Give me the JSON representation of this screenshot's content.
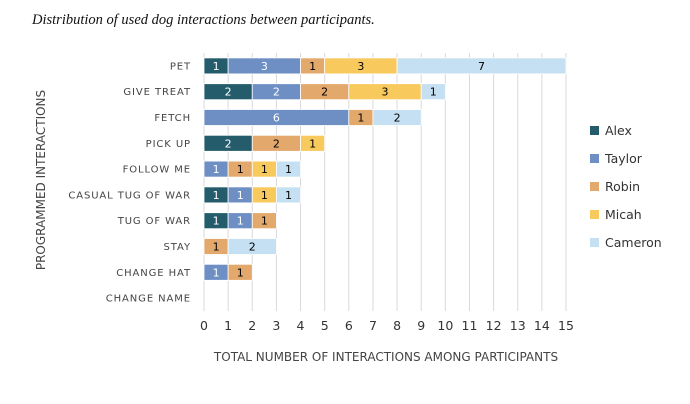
{
  "chart_data": {
    "type": "bar",
    "orientation": "horizontal",
    "stacked": true,
    "title": "Distribution of used dog interactions between participants.",
    "xlabel": "TOTAL NUMBER OF INTERACTIONS AMONG PARTICIPANTS",
    "ylabel": "PROGRAMMED INTERACTIONS",
    "xlim": [
      0,
      15
    ],
    "xticks": [
      0,
      1,
      2,
      3,
      4,
      5,
      6,
      7,
      8,
      9,
      10,
      11,
      12,
      13,
      14,
      15
    ],
    "grid": true,
    "legend_position": "right",
    "categories": [
      "PET",
      "GIVE TREAT",
      "FETCH",
      "PICK UP",
      "FOLLOW ME",
      "CASUAL TUG OF WAR",
      "TUG OF WAR",
      "STAY",
      "CHANGE HAT",
      "CHANGE NAME"
    ],
    "series": [
      {
        "name": "Alex",
        "color": "#245c6c",
        "label_color": "#ffffff",
        "values": [
          1,
          2,
          0,
          2,
          0,
          1,
          1,
          0,
          0,
          0
        ]
      },
      {
        "name": "Taylor",
        "color": "#6e8fc4",
        "label_color": "#ffffff",
        "values": [
          3,
          2,
          6,
          0,
          1,
          1,
          1,
          0,
          1,
          0
        ]
      },
      {
        "name": "Robin",
        "color": "#e3a86c",
        "label_color": "#000000",
        "values": [
          1,
          2,
          1,
          2,
          1,
          0,
          1,
          1,
          1,
          0
        ]
      },
      {
        "name": "Micah",
        "color": "#f8c95d",
        "label_color": "#000000",
        "values": [
          3,
          3,
          0,
          1,
          1,
          1,
          0,
          0,
          0,
          0
        ]
      },
      {
        "name": "Cameron",
        "color": "#c5e0f2",
        "label_color": "#000000",
        "values": [
          7,
          1,
          2,
          0,
          1,
          1,
          0,
          2,
          0,
          0
        ]
      }
    ]
  }
}
